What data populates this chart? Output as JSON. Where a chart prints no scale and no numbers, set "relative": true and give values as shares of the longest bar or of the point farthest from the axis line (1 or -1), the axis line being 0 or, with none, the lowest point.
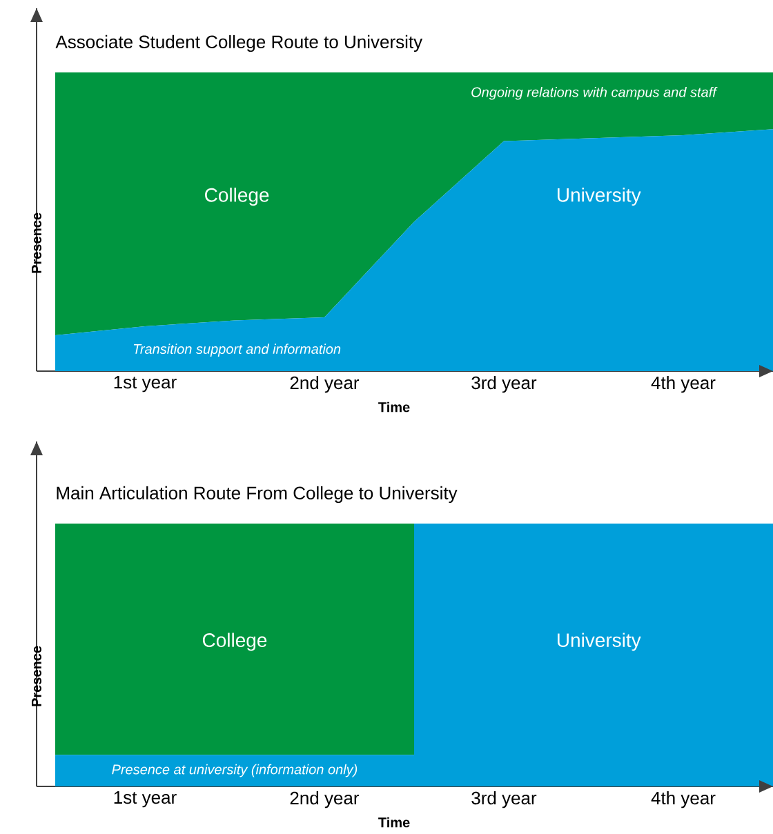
{
  "chart_data": [
    {
      "type": "area",
      "title": "Associate Student College Route to University",
      "xlabel": "Time",
      "ylabel": "Presence",
      "relative": true,
      "stacked": true,
      "categories": [
        null,
        "1st year",
        null,
        "2nd year",
        null,
        "3rd year",
        null,
        "4th year",
        null
      ],
      "series": [
        {
          "name": "University",
          "color": "#009fda",
          "values": [
            0.12,
            0.15,
            0.17,
            0.18,
            0.5,
            0.77,
            0.78,
            0.79,
            0.81
          ]
        },
        {
          "name": "College",
          "color": "#009640",
          "values": [
            0.88,
            0.85,
            0.83,
            0.82,
            0.5,
            0.23,
            0.22,
            0.21,
            0.19
          ]
        }
      ],
      "annotations": [
        "Ongoing relations with campus and staff",
        "Transition support and information"
      ]
    },
    {
      "type": "bar",
      "title": "Main Articulation Route From College to University",
      "xlabel": "Time",
      "ylabel": "Presence",
      "relative": true,
      "stacked": true,
      "categories": [
        "1st year",
        "2nd year",
        "3rd year",
        "4th year"
      ],
      "series": [
        {
          "name": "University",
          "color": "#009fda",
          "values": [
            0.12,
            0.12,
            1,
            1
          ]
        },
        {
          "name": "College",
          "color": "#009640",
          "values": [
            0.88,
            0.88,
            0,
            0
          ]
        }
      ],
      "annotations": [
        "Presence at university (information only)"
      ]
    }
  ]
}
